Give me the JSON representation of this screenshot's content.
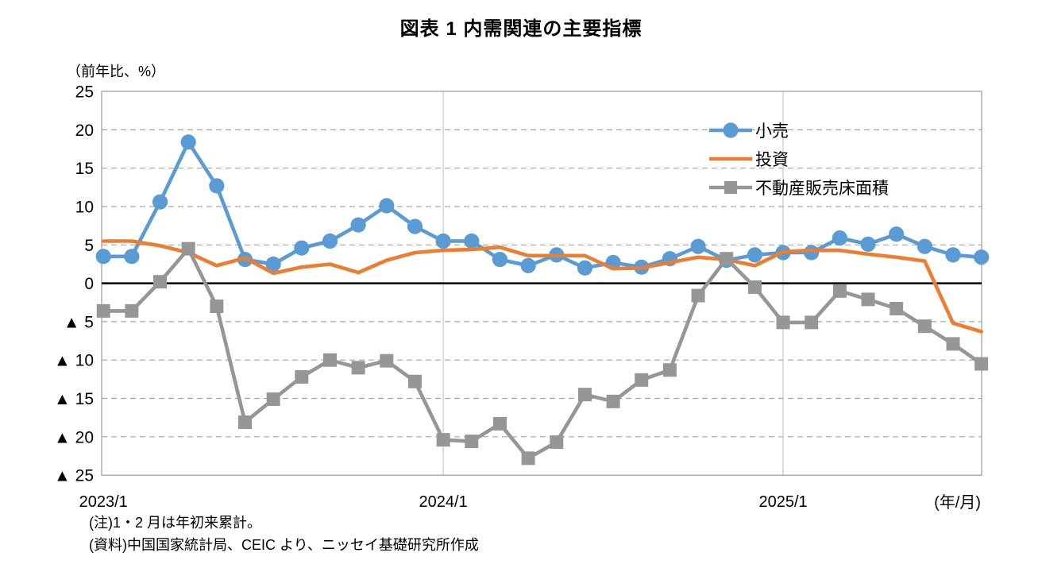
{
  "page": {
    "title": "図表 1  内需関連の主要指標",
    "y_axis_unit_label": "（前年比、%）",
    "x_axis_unit_label": "(年/月)",
    "note_1": "(注)1・2 月は年初来累計。",
    "note_2": "(資料)中国国家統計局、CEIC より、ニッセイ基礎研究所作成"
  },
  "chart_data": {
    "type": "line",
    "title": "図表 1  内需関連の主要指標",
    "ylabel": "（前年比、%）",
    "xlabel": "(年/月)",
    "ylim": [
      -25,
      25
    ],
    "ytick_step": 5,
    "grid": "horizontal-dashed, vertical-solid-at-year-start",
    "legend_position": "top-right-inside",
    "x": [
      "2023/1",
      "2023/2",
      "2023/3",
      "2023/4",
      "2023/5",
      "2023/6",
      "2023/7",
      "2023/8",
      "2023/9",
      "2023/10",
      "2023/11",
      "2023/12",
      "2024/1",
      "2024/2",
      "2024/3",
      "2024/4",
      "2024/5",
      "2024/6",
      "2024/7",
      "2024/8",
      "2024/9",
      "2024/10",
      "2024/11",
      "2024/12",
      "2025/1",
      "2025/2",
      "2025/3",
      "2025/4",
      "2025/5",
      "2025/6",
      "2025/7",
      "2025/8"
    ],
    "x_ticks": [
      {
        "index": 0,
        "label": "2023/1"
      },
      {
        "index": 12,
        "label": "2024/1"
      },
      {
        "index": 24,
        "label": "2025/1"
      }
    ],
    "x_gridline_indices": [
      12,
      24
    ],
    "y_ticks": [
      {
        "v": 25,
        "label": "25"
      },
      {
        "v": 20,
        "label": "20"
      },
      {
        "v": 15,
        "label": "15"
      },
      {
        "v": 10,
        "label": "10"
      },
      {
        "v": 5,
        "label": "5"
      },
      {
        "v": 0,
        "label": "0"
      },
      {
        "v": -5,
        "label": "▲ 5"
      },
      {
        "v": -10,
        "label": "▲ 10"
      },
      {
        "v": -15,
        "label": "▲ 15"
      },
      {
        "v": -20,
        "label": "▲ 20"
      },
      {
        "v": -25,
        "label": "▲ 25"
      }
    ],
    "series": [
      {
        "key": "retail",
        "name": "小売",
        "color": "#5B9BD5",
        "marker": "circle",
        "values": [
          3.5,
          3.5,
          10.6,
          18.4,
          12.7,
          3.1,
          2.5,
          4.6,
          5.5,
          7.6,
          10.1,
          7.4,
          5.5,
          5.5,
          3.1,
          2.3,
          3.7,
          2.0,
          2.7,
          2.1,
          3.2,
          4.8,
          3.0,
          3.7,
          4.0,
          4.0,
          5.9,
          5.1,
          6.4,
          4.8,
          3.7,
          3.4
        ]
      },
      {
        "key": "investment",
        "name": "投資",
        "color": "#ED7D31",
        "marker": "none",
        "values": [
          5.5,
          5.5,
          4.9,
          4.0,
          2.3,
          3.3,
          1.3,
          2.1,
          2.5,
          1.4,
          3.0,
          4.0,
          4.3,
          4.4,
          4.7,
          3.6,
          3.6,
          3.6,
          1.9,
          2.0,
          2.7,
          3.4,
          3.1,
          2.3,
          4.1,
          4.3,
          4.3,
          3.8,
          3.4,
          2.9,
          -5.2,
          -6.3
        ]
      },
      {
        "key": "floor-space",
        "name": "不動産販売床面積",
        "color": "#969696",
        "marker": "square",
        "values": [
          -3.6,
          -3.6,
          0.2,
          4.5,
          -3.0,
          -18.1,
          -15.1,
          -12.2,
          -10.0,
          -11.0,
          -10.1,
          -12.8,
          -20.4,
          -20.6,
          -18.3,
          -22.8,
          -20.7,
          -14.5,
          -15.4,
          -12.6,
          -11.3,
          -1.6,
          3.2,
          -0.5,
          -5.1,
          -5.1,
          -1.0,
          -2.1,
          -3.3,
          -5.6,
          -7.9,
          -10.5
        ]
      }
    ]
  }
}
